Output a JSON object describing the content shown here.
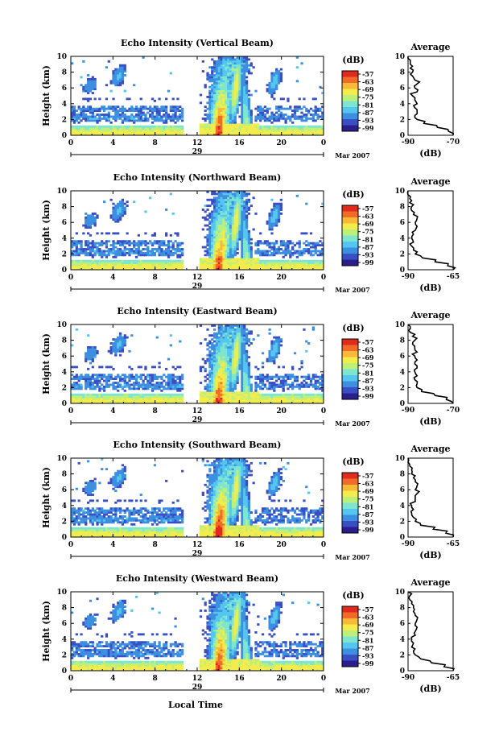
{
  "figure": {
    "xlabel": "Local Time",
    "month_label": "Mar 2007",
    "colorbar_unit": "(dB)",
    "colorbar_ticks": [
      "-57",
      "-63",
      "-69",
      "-75",
      "-81",
      "-87",
      "-93",
      "-99"
    ],
    "avg_title": "Average",
    "avg_xlabel": "(dB)"
  },
  "colormap": [
    "#2a1e8c",
    "#3a4fc4",
    "#3d8fe0",
    "#55c6f0",
    "#7ee6d0",
    "#bdf07a",
    "#f3ec4a",
    "#f8b838",
    "#f06a28",
    "#e02a1e"
  ],
  "chart_data": [
    {
      "type": "heatmap",
      "title": "Echo Intensity (Vertical Beam)",
      "ylabel": "Height (km)",
      "xlim": [
        0,
        24
      ],
      "ylim": [
        0,
        10
      ],
      "xticks": [
        "0",
        "4",
        "8",
        "12",
        "16",
        "20",
        "0"
      ],
      "yticks": [
        "0",
        "2",
        "4",
        "6",
        "8",
        "10"
      ],
      "date_label": "29",
      "data_gap_hours": [
        10.7,
        12.3
      ],
      "colorbar_range_db": [
        -99,
        -57
      ],
      "average_profile": {
        "xlim": [
          -90,
          -70
        ],
        "xticks": [
          "-90",
          "-70"
        ],
        "height_km": [
          0,
          0.5,
          1,
          1.5,
          2,
          2.5,
          3,
          3.5,
          4,
          4.5,
          5,
          5.5,
          6,
          6.5,
          7,
          7.5,
          8,
          8.5,
          9,
          9.5,
          10
        ],
        "value_db": [
          -70,
          -72,
          -77,
          -83,
          -86,
          -87,
          -86,
          -87,
          -86,
          -87,
          -88,
          -86,
          -87,
          -86,
          -87,
          -88,
          -88,
          -89,
          -89,
          -89,
          -90
        ]
      }
    },
    {
      "type": "heatmap",
      "title": "Echo Intensity (Northward Beam)",
      "ylabel": "Height (km)",
      "xlim": [
        0,
        24
      ],
      "ylim": [
        0,
        10
      ],
      "xticks": [
        "0",
        "4",
        "8",
        "12",
        "16",
        "20",
        "0"
      ],
      "yticks": [
        "0",
        "2",
        "4",
        "6",
        "8",
        "10"
      ],
      "date_label": "29",
      "data_gap_hours": [
        10.7,
        12.3
      ],
      "colorbar_range_db": [
        -99,
        -57
      ],
      "average_profile": {
        "xlim": [
          -90,
          -65
        ],
        "xticks": [
          "-90",
          "-65"
        ],
        "height_km": [
          0,
          0.5,
          1,
          1.5,
          2,
          2.5,
          3,
          3.5,
          4,
          4.5,
          5,
          5.5,
          6,
          6.5,
          7,
          7.5,
          8,
          8.5,
          9,
          9.5,
          10
        ],
        "value_db": [
          -65,
          -68,
          -75,
          -82,
          -86,
          -87,
          -88,
          -87,
          -88,
          -87,
          -86,
          -85,
          -86,
          -85,
          -87,
          -88,
          -88,
          -89,
          -89,
          -90,
          -90
        ]
      }
    },
    {
      "type": "heatmap",
      "title": "Echo Intensity (Eastward Beam)",
      "ylabel": "Height (km)",
      "xlim": [
        0,
        24
      ],
      "ylim": [
        0,
        10
      ],
      "xticks": [
        "0",
        "4",
        "8",
        "12",
        "16",
        "20",
        "0"
      ],
      "yticks": [
        "0",
        "2",
        "4",
        "6",
        "8",
        "10"
      ],
      "date_label": "29",
      "data_gap_hours": [
        10.7,
        12.3
      ],
      "colorbar_range_db": [
        -99,
        -57
      ],
      "average_profile": {
        "xlim": [
          -90,
          -70
        ],
        "xticks": [
          "-90",
          "-70"
        ],
        "height_km": [
          0,
          0.5,
          1,
          1.5,
          2,
          2.5,
          3,
          3.5,
          4,
          4.5,
          5,
          5.5,
          6,
          6.5,
          7,
          7.5,
          8,
          8.5,
          9,
          9.5,
          10
        ],
        "value_db": [
          -70,
          -73,
          -78,
          -84,
          -86,
          -86,
          -87,
          -86,
          -87,
          -86,
          -87,
          -86,
          -87,
          -86,
          -87,
          -88,
          -87,
          -88,
          -89,
          -89,
          -90
        ]
      }
    },
    {
      "type": "heatmap",
      "title": "Echo Intensity (Southward Beam)",
      "ylabel": "Height (km)",
      "xlim": [
        0,
        24
      ],
      "ylim": [
        0,
        10
      ],
      "xticks": [
        "0",
        "4",
        "8",
        "12",
        "16",
        "20",
        "0"
      ],
      "yticks": [
        "0",
        "2",
        "4",
        "6",
        "8",
        "10"
      ],
      "date_label": "29",
      "data_gap_hours": [
        10.7,
        12.3
      ],
      "colorbar_range_db": [
        -99,
        -57
      ],
      "average_profile": {
        "xlim": [
          -90,
          -65
        ],
        "xticks": [
          "-90",
          "-65"
        ],
        "height_km": [
          0,
          0.5,
          1,
          1.5,
          2,
          2.5,
          3,
          3.5,
          4,
          4.5,
          5,
          5.5,
          6,
          6.5,
          7,
          7.5,
          8,
          8.5,
          9,
          9.5,
          10
        ],
        "value_db": [
          -65,
          -69,
          -76,
          -83,
          -86,
          -87,
          -88,
          -87,
          -88,
          -86,
          -86,
          -85,
          -86,
          -85,
          -86,
          -87,
          -88,
          -88,
          -89,
          -90,
          -90
        ]
      }
    },
    {
      "type": "heatmap",
      "title": "Echo Intensity (Westward Beam)",
      "ylabel": "Height (km)",
      "xlim": [
        0,
        24
      ],
      "ylim": [
        0,
        10
      ],
      "xticks": [
        "0",
        "4",
        "8",
        "12",
        "16",
        "20",
        "0"
      ],
      "yticks": [
        "0",
        "2",
        "4",
        "6",
        "8",
        "10"
      ],
      "date_label": "29",
      "data_gap_hours": [
        10.7,
        12.3
      ],
      "colorbar_range_db": [
        -99,
        -57
      ],
      "average_profile": {
        "xlim": [
          -90,
          -65
        ],
        "xticks": [
          "-90",
          "-65"
        ],
        "height_km": [
          0,
          0.5,
          1,
          1.5,
          2,
          2.5,
          3,
          3.5,
          4,
          4.5,
          5,
          5.5,
          6,
          6.5,
          7,
          7.5,
          8,
          8.5,
          9,
          9.5,
          10
        ],
        "value_db": [
          -65,
          -70,
          -77,
          -83,
          -86,
          -87,
          -88,
          -87,
          -88,
          -86,
          -86,
          -85,
          -86,
          -85,
          -86,
          -87,
          -87,
          -88,
          -89,
          -89,
          -90
        ]
      }
    }
  ]
}
